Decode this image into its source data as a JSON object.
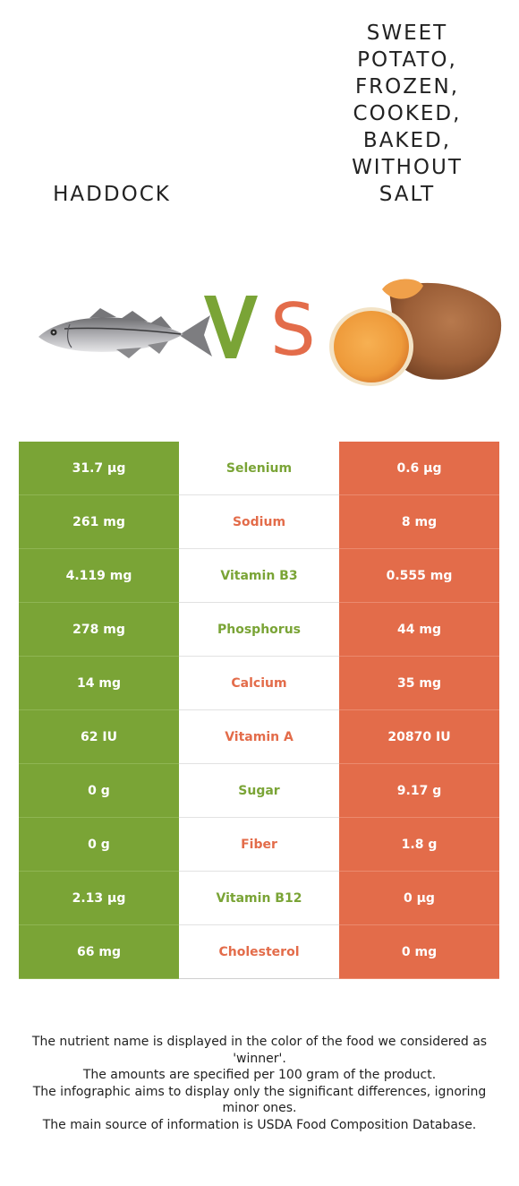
{
  "left_food": {
    "name": "HADDOCK",
    "color": "#7aa436"
  },
  "right_food": {
    "name_lines": [
      "SWEET",
      "POTATO,",
      "FROZEN,",
      "COOKED,",
      "BAKED,",
      "WITHOUT",
      "SALT"
    ],
    "color": "#e36c4a"
  },
  "vs": {
    "v": "V",
    "s": "S"
  },
  "rows": [
    {
      "left": "31.7 µg",
      "nutrient": "Selenium",
      "right": "0.6 µg",
      "winner": "left"
    },
    {
      "left": "261 mg",
      "nutrient": "Sodium",
      "right": "8 mg",
      "winner": "right"
    },
    {
      "left": "4.119 mg",
      "nutrient": "Vitamin B3",
      "right": "0.555 mg",
      "winner": "left"
    },
    {
      "left": "278 mg",
      "nutrient": "Phosphorus",
      "right": "44 mg",
      "winner": "left"
    },
    {
      "left": "14 mg",
      "nutrient": "Calcium",
      "right": "35 mg",
      "winner": "right"
    },
    {
      "left": "62 IU",
      "nutrient": "Vitamin A",
      "right": "20870 IU",
      "winner": "right"
    },
    {
      "left": "0 g",
      "nutrient": "Sugar",
      "right": "9.17 g",
      "winner": "left"
    },
    {
      "left": "0 g",
      "nutrient": "Fiber",
      "right": "1.8 g",
      "winner": "right"
    },
    {
      "left": "2.13 µg",
      "nutrient": "Vitamin B12",
      "right": "0 µg",
      "winner": "left"
    },
    {
      "left": "66 mg",
      "nutrient": "Cholesterol",
      "right": "0 mg",
      "winner": "right"
    }
  ],
  "footnotes": [
    "The nutrient name is displayed in the color of the food we considered as 'winner'.",
    "The amounts are specified per 100 gram of the product.",
    "The infographic aims to display only the significant differences, ignoring minor ones.",
    "The main source of information is USDA Food Composition Database."
  ]
}
